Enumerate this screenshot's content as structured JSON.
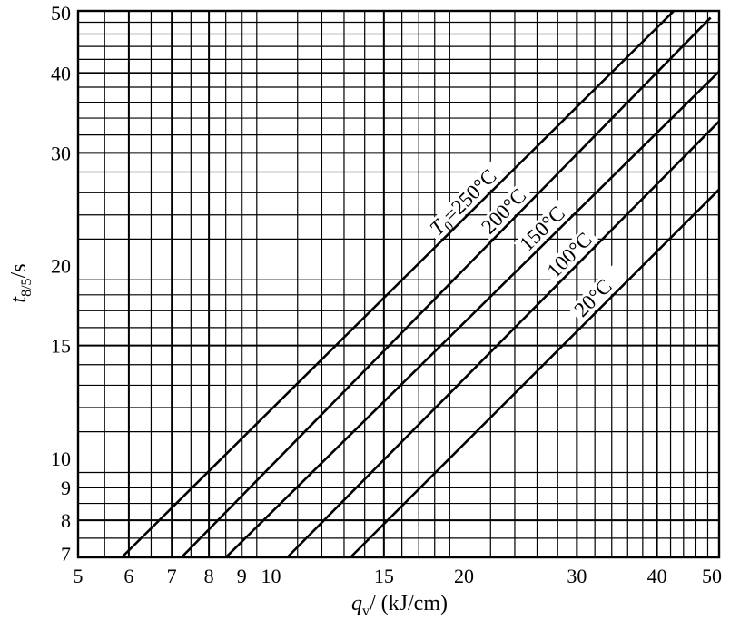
{
  "chart_data": {
    "type": "line",
    "x_scale": "log",
    "y_scale": "log",
    "xlim": [
      5,
      50
    ],
    "ylim": [
      7,
      50
    ],
    "grid": true,
    "xlabel": {
      "var": "q",
      "sub": "v",
      "rest": "/ (kJ/cm)"
    },
    "ylabel": {
      "var": "t",
      "sub": "8/5",
      "rest": "/s"
    },
    "x_ticks": [
      5,
      6,
      7,
      8,
      9,
      10,
      15,
      20,
      30,
      40,
      50
    ],
    "y_ticks": [
      7,
      8,
      9,
      10,
      15,
      20,
      30,
      40,
      50
    ],
    "series": [
      {
        "name": "T0=250°C",
        "label_prefix": "T",
        "label_sub": "0",
        "label_rest": "=250°C",
        "x": [
          5.85,
          42.5
        ],
        "y": [
          7,
          50
        ]
      },
      {
        "name": "200°C",
        "label_prefix": "",
        "label_sub": "",
        "label_rest": "200°C",
        "x": [
          7.25,
          48.5
        ],
        "y": [
          7,
          48.8
        ]
      },
      {
        "name": "150°C",
        "label_prefix": "",
        "label_sub": "",
        "label_rest": "150°C",
        "x": [
          8.5,
          50
        ],
        "y": [
          7,
          40.2
        ]
      },
      {
        "name": "100°C",
        "label_prefix": "",
        "label_sub": "",
        "label_rest": "100°C",
        "x": [
          10.6,
          50
        ],
        "y": [
          7,
          33.6
        ]
      },
      {
        "name": "20°C",
        "label_prefix": "",
        "label_sub": "",
        "label_rest": "20°C",
        "x": [
          13.3,
          50
        ],
        "y": [
          7,
          26.3
        ]
      }
    ]
  }
}
